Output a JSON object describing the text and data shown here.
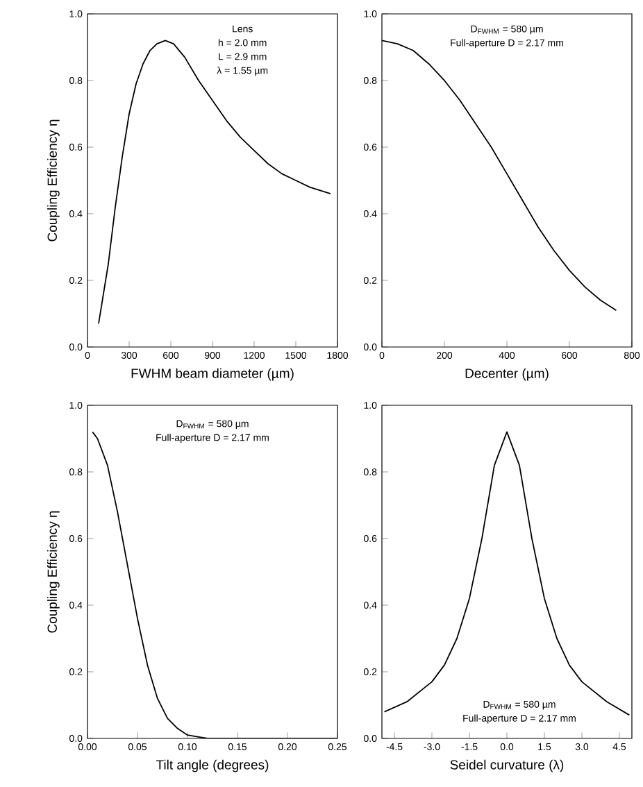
{
  "chart_data": [
    {
      "type": "line",
      "xlabel": "FWHM beam diameter (µm)",
      "ylabel": "Coupling Efficiency η",
      "color": "#000000",
      "x": [
        80,
        150,
        200,
        250,
        300,
        350,
        400,
        450,
        500,
        560,
        620,
        700,
        800,
        900,
        1000,
        1100,
        1200,
        1300,
        1400,
        1500,
        1600,
        1750
      ],
      "values": [
        0.07,
        0.25,
        0.42,
        0.57,
        0.7,
        0.79,
        0.85,
        0.89,
        0.91,
        0.92,
        0.91,
        0.87,
        0.8,
        0.74,
        0.68,
        0.63,
        0.59,
        0.55,
        0.52,
        0.5,
        0.48,
        0.46
      ],
      "xlim": [
        0,
        1800
      ],
      "xticks": [
        0,
        300,
        600,
        900,
        1200,
        1500,
        1800
      ],
      "ylim": [
        0,
        1
      ],
      "yticks": [
        {
          "value": 0,
          "label": "0.0"
        },
        {
          "value": 0.2,
          "label": "0.2"
        },
        {
          "value": 0.4,
          "label": "0.4"
        },
        {
          "value": 0.6,
          "label": "0.6"
        },
        {
          "value": 0.8,
          "label": "0.8"
        },
        {
          "value": 1,
          "label": "1.0"
        }
      ],
      "annotations": [
        "Lens",
        "h = 2.0 mm",
        "L = 2.9 mm",
        "λ = 1.55 µm"
      ]
    },
    {
      "type": "line",
      "xlabel": "Decenter (µm)",
      "color": "#000000",
      "x": [
        0,
        50,
        100,
        150,
        200,
        250,
        300,
        350,
        400,
        450,
        500,
        550,
        600,
        650,
        700,
        750
      ],
      "values": [
        0.92,
        0.91,
        0.89,
        0.85,
        0.8,
        0.74,
        0.67,
        0.6,
        0.52,
        0.44,
        0.36,
        0.29,
        0.23,
        0.18,
        0.14,
        0.11
      ],
      "xlim": [
        0,
        800
      ],
      "xticks": [
        0,
        200,
        400,
        600,
        800
      ],
      "ylim": [
        0,
        1
      ],
      "yticks": [
        {
          "value": 0,
          "label": "0.0"
        },
        {
          "value": 0.2,
          "label": "0.2"
        },
        {
          "value": 0.4,
          "label": "0.4"
        },
        {
          "value": 0.6,
          "label": "0.6"
        },
        {
          "value": 0.8,
          "label": "0.8"
        },
        {
          "value": 1,
          "label": "1.0"
        }
      ],
      "annotations": [
        "D$_{FWHM}$ = 580 µm",
        "Full-aperture D = 2.17 mm"
      ]
    },
    {
      "type": "line",
      "xlabel": "Tilt angle (degrees)",
      "ylabel": "Coupling Efficiency η",
      "color": "#000000",
      "x": [
        0.005,
        0.01,
        0.02,
        0.03,
        0.04,
        0.05,
        0.06,
        0.07,
        0.08,
        0.09,
        0.1,
        0.11,
        0.12,
        0.25
      ],
      "values": [
        0.92,
        0.9,
        0.82,
        0.68,
        0.52,
        0.36,
        0.22,
        0.12,
        0.06,
        0.03,
        0.01,
        0.005,
        0.0,
        0.0
      ],
      "xlim": [
        0,
        0.25
      ],
      "xticks": [
        {
          "value": 0,
          "label": "0.00"
        },
        {
          "value": 0.05,
          "label": "0.05"
        },
        {
          "value": 0.1,
          "label": "0.10"
        },
        {
          "value": 0.15,
          "label": "0.15"
        },
        {
          "value": 0.2,
          "label": "0.20"
        },
        {
          "value": 0.25,
          "label": "0.25"
        }
      ],
      "ylim": [
        0,
        1
      ],
      "yticks": [
        {
          "value": 0,
          "label": "0.0"
        },
        {
          "value": 0.2,
          "label": "0.2"
        },
        {
          "value": 0.4,
          "label": "0.4"
        },
        {
          "value": 0.6,
          "label": "0.6"
        },
        {
          "value": 0.8,
          "label": "0.8"
        },
        {
          "value": 1,
          "label": "1.0"
        }
      ],
      "annotations": [
        "D$_{FWHM}$ = 580 µm",
        "Full-aperture D = 2.17 mm"
      ]
    },
    {
      "type": "line",
      "xlabel": "Seidel curvature (λ)",
      "color": "#000000",
      "x": [
        -4.9,
        -4,
        -3,
        -2.5,
        -2,
        -1.5,
        -1,
        -0.5,
        0,
        0.5,
        1,
        1.5,
        2,
        2.5,
        3,
        4,
        4.9
      ],
      "values": [
        0.08,
        0.11,
        0.17,
        0.22,
        0.3,
        0.42,
        0.6,
        0.82,
        0.92,
        0.82,
        0.6,
        0.42,
        0.3,
        0.22,
        0.17,
        0.11,
        0.07
      ],
      "xlim": [
        -5,
        5
      ],
      "xticks": [
        -4.5,
        {
          "value": -3,
          "label": "-3.0"
        },
        -1.5,
        {
          "value": 0,
          "label": "0.0"
        },
        1.5,
        {
          "value": 3,
          "label": "3.0"
        },
        4.5
      ],
      "ylim": [
        0,
        1
      ],
      "yticks": [
        {
          "value": 0,
          "label": "0.0"
        },
        {
          "value": 0.2,
          "label": "0.2"
        },
        {
          "value": 0.4,
          "label": "0.4"
        },
        {
          "value": 0.6,
          "label": "0.6"
        },
        {
          "value": 0.8,
          "label": "0.8"
        },
        {
          "value": 1,
          "label": "1.0"
        }
      ],
      "annotations": [
        "D$_{FWHM}$ = 580 µm",
        "Full-aperture D = 2.17 mm"
      ]
    }
  ]
}
